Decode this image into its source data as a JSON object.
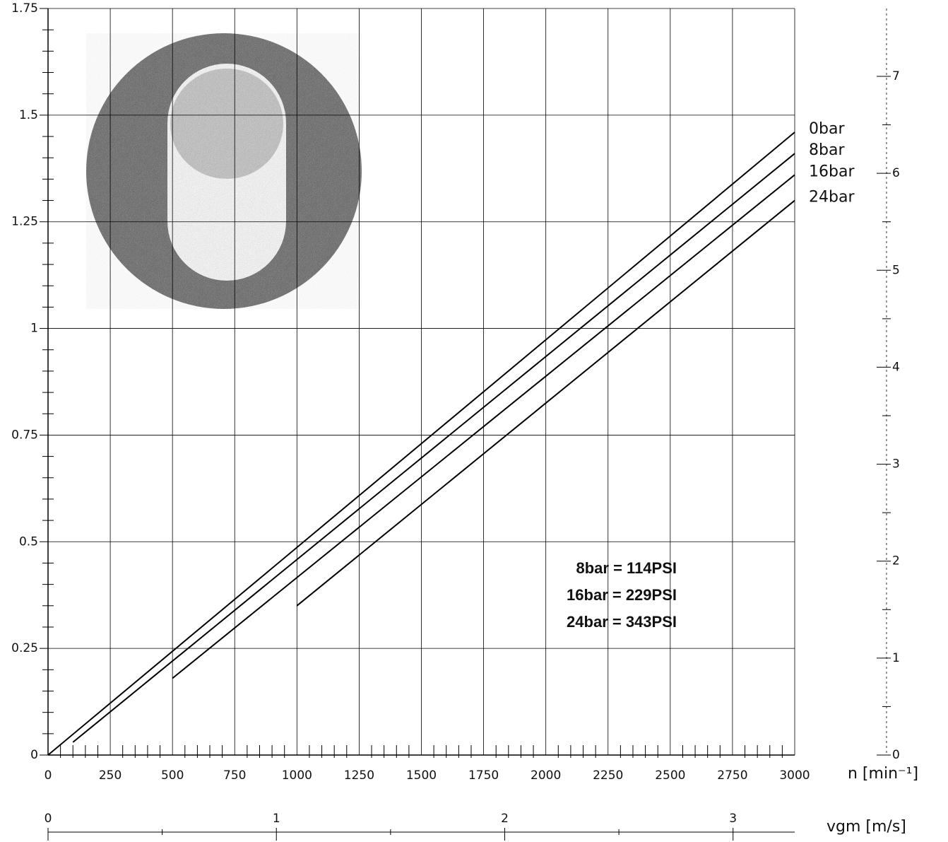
{
  "chart_data": {
    "type": "line",
    "x_label": "n [min⁻¹]",
    "xlim": [
      0,
      3000
    ],
    "xticks": [
      0,
      250,
      500,
      750,
      1000,
      1250,
      1500,
      1750,
      2000,
      2250,
      2500,
      2750,
      3000
    ],
    "ylim": [
      0,
      1.75
    ],
    "yticks": [
      0,
      0.25,
      0.5,
      0.75,
      1,
      1.25,
      1.5,
      1.75
    ],
    "y2lim": [
      0,
      7.7
    ],
    "y2ticks": [
      0,
      1,
      2,
      3,
      4,
      5,
      6,
      7
    ],
    "x2_label": "vgm [m/s]",
    "x2lim": [
      0,
      3.27
    ],
    "x2ticks": [
      0,
      1,
      2,
      3
    ],
    "grid": true,
    "series": [
      {
        "name": "0bar",
        "color": "#000000",
        "x": [
          0,
          3000
        ],
        "values": [
          0,
          1.46
        ]
      },
      {
        "name": "8bar",
        "color": "#000000",
        "x": [
          100,
          3000
        ],
        "values": [
          0.03,
          1.41
        ]
      },
      {
        "name": "16bar",
        "color": "#000000",
        "x": [
          500,
          3000
        ],
        "values": [
          0.18,
          1.36
        ]
      },
      {
        "name": "24bar",
        "color": "#000000",
        "x": [
          1000,
          3000
        ],
        "values": [
          0.35,
          1.3
        ]
      }
    ],
    "annotations": [
      "8bar = 114PSI",
      "16bar = 229PSI",
      "24bar = 343PSI"
    ]
  }
}
